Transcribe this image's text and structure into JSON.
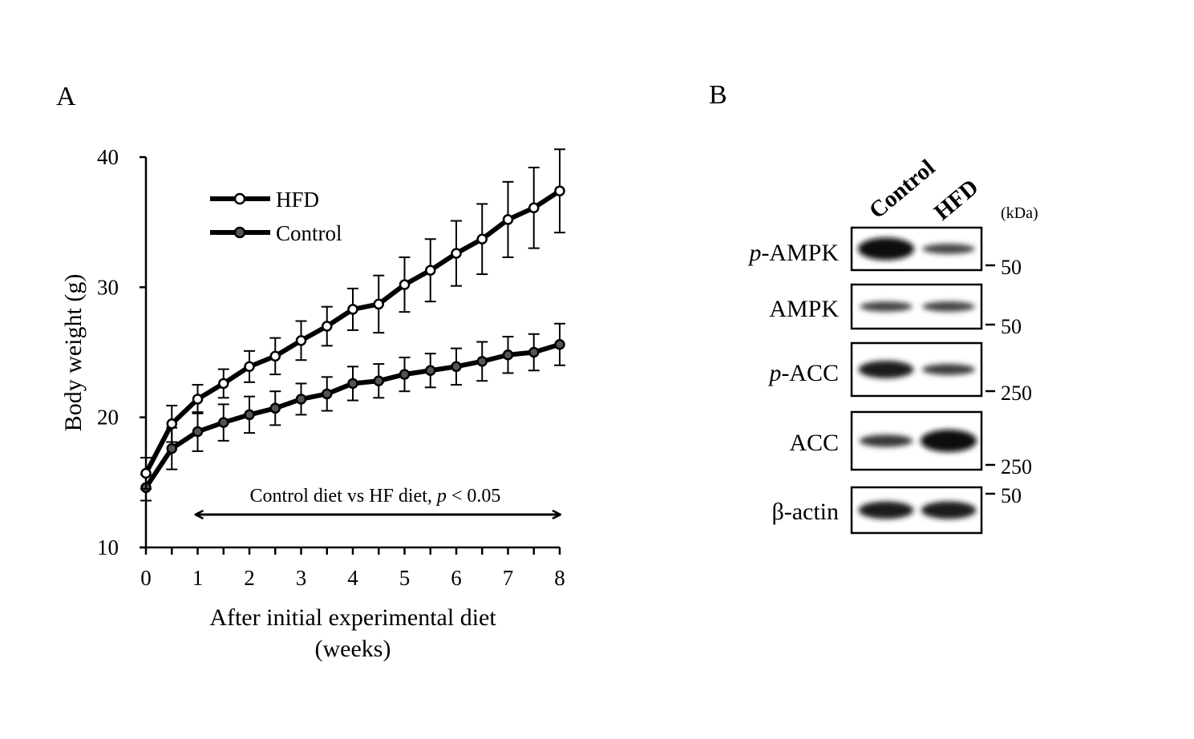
{
  "panels": {
    "a_label": "A",
    "b_label": "B"
  },
  "chart_data": {
    "type": "line",
    "xlabel_line1": "After initial experimental diet",
    "xlabel_line2": "(weeks)",
    "ylabel": "Body weight (g)",
    "xlim": [
      0,
      8
    ],
    "ylim": [
      10,
      40
    ],
    "x_ticks": [
      "0",
      "1",
      "2",
      "3",
      "4",
      "5",
      "6",
      "7",
      "8"
    ],
    "y_ticks": [
      "10",
      "20",
      "30",
      "40"
    ],
    "grid": false,
    "legend_position": "top-left",
    "x": [
      0,
      0.5,
      1,
      1.5,
      2,
      2.5,
      3,
      3.5,
      4,
      4.5,
      5,
      5.5,
      6,
      6.5,
      7,
      7.5,
      8
    ],
    "series": [
      {
        "name": "HFD",
        "marker": "open-circle",
        "values": [
          15.7,
          19.5,
          21.4,
          22.6,
          23.9,
          24.7,
          25.9,
          27.0,
          28.3,
          28.7,
          30.2,
          31.3,
          32.6,
          33.7,
          35.2,
          36.1,
          37.4
        ],
        "errors": [
          1.2,
          1.4,
          1.1,
          1.1,
          1.2,
          1.4,
          1.5,
          1.5,
          1.6,
          2.2,
          2.1,
          2.4,
          2.5,
          2.7,
          2.9,
          3.1,
          3.2
        ]
      },
      {
        "name": "Control",
        "marker": "filled-circle",
        "values": [
          14.6,
          17.6,
          18.9,
          19.6,
          20.2,
          20.7,
          21.4,
          21.8,
          22.6,
          22.8,
          23.3,
          23.6,
          23.9,
          24.3,
          24.8,
          25.0,
          25.6
        ],
        "errors": [
          1.0,
          1.6,
          1.5,
          1.4,
          1.4,
          1.3,
          1.2,
          1.3,
          1.3,
          1.3,
          1.3,
          1.3,
          1.4,
          1.5,
          1.4,
          1.4,
          1.6
        ]
      }
    ],
    "annotation": {
      "text_before": "Control diet vs HF diet, ",
      "p_italic": "p",
      "text_after": " < 0.05",
      "x_from": 1,
      "x_to": 8
    },
    "colors": {
      "line": "#000000",
      "hfd_fill": "#ffffff",
      "control_fill": "#555555"
    }
  },
  "blot": {
    "lanes": [
      "Control",
      "HFD"
    ],
    "unit": "(kDa)",
    "rows": [
      {
        "prefix": "p",
        "name": "-AMPK",
        "marker": "50",
        "intensity": [
          1.0,
          0.55
        ]
      },
      {
        "prefix": "",
        "name": "AMPK",
        "marker": "50",
        "intensity": [
          0.55,
          0.55
        ]
      },
      {
        "prefix": "p",
        "name": "-ACC",
        "marker": "250",
        "intensity": [
          0.85,
          0.6
        ]
      },
      {
        "prefix": "",
        "name": "ACC",
        "marker": "250",
        "intensity": [
          0.65,
          1.0
        ]
      },
      {
        "prefix": "",
        "name": "β-actin",
        "marker": "50",
        "intensity": [
          0.85,
          0.85
        ]
      }
    ]
  }
}
